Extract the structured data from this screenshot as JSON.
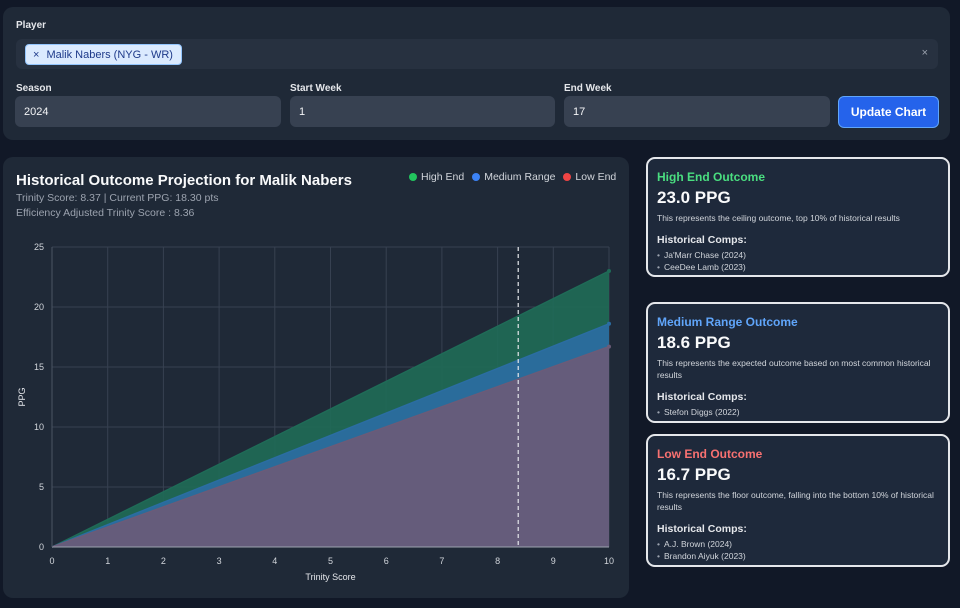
{
  "filters": {
    "player_label": "Player",
    "selected_player": "Malik Nabers (NYG - WR)",
    "chip_remove": "×",
    "clear": "×",
    "season_label": "Season",
    "season_value": "2024",
    "start_week_label": "Start Week",
    "start_week_value": "1",
    "end_week_label": "End Week",
    "end_week_value": "17",
    "update_button": "Update Chart"
  },
  "chart": {
    "title": "Historical Outcome Projection for Malik Nabers",
    "subtitle1": "Trinity Score: 8.37 | Current PPG: 18.30 pts",
    "subtitle2": "Efficiency Adjusted Trinity Score : 8.36",
    "legend": [
      {
        "label": "High End",
        "color": "#22c55e"
      },
      {
        "label": "Medium Range",
        "color": "#3b82f6"
      },
      {
        "label": "Low End",
        "color": "#ef4444"
      }
    ]
  },
  "chart_data": {
    "type": "area",
    "title": "Historical Outcome Projection for Malik Nabers",
    "xlabel": "Trinity Score",
    "ylabel": "PPG",
    "xlim": [
      0,
      10
    ],
    "ylim": [
      0,
      25
    ],
    "x_ticks": [
      "0",
      "1",
      "2",
      "3",
      "4",
      "5",
      "6",
      "7",
      "8",
      "9",
      "10"
    ],
    "y_ticks": [
      "0",
      "5",
      "10",
      "15",
      "20",
      "25"
    ],
    "grid": true,
    "legend_position": "top-right",
    "x": [
      0,
      10
    ],
    "series": [
      {
        "name": "High End",
        "values": [
          0,
          23.0
        ],
        "fill": "#1f6b57"
      },
      {
        "name": "Medium Range",
        "values": [
          0,
          18.6
        ],
        "fill": "#2b6da3"
      },
      {
        "name": "Low End",
        "values": [
          0,
          16.7
        ],
        "fill": "#6b5b78"
      }
    ],
    "marker_line_x": 8.37
  },
  "outcomes": [
    {
      "title": "High End Outcome",
      "ppg": "23.0 PPG",
      "description": "This represents the ceiling outcome, top 10% of historical results",
      "comps_label": "Historical Comps:",
      "comps": [
        "Ja'Marr Chase (2024)",
        "CeeDee Lamb (2023)"
      ],
      "color": "#4ade80"
    },
    {
      "title": "Medium Range Outcome",
      "ppg": "18.6 PPG",
      "description": "This represents the expected outcome based on most common historical results",
      "comps_label": "Historical Comps:",
      "comps": [
        "Stefon Diggs (2022)"
      ],
      "color": "#60a5fa"
    },
    {
      "title": "Low End Outcome",
      "ppg": "16.7 PPG",
      "description": "This represents the floor outcome, falling into the bottom 10% of historical results",
      "comps_label": "Historical Comps:",
      "comps": [
        "A.J. Brown (2024)",
        "Brandon Aiyuk (2023)"
      ],
      "color": "#f87171"
    }
  ]
}
